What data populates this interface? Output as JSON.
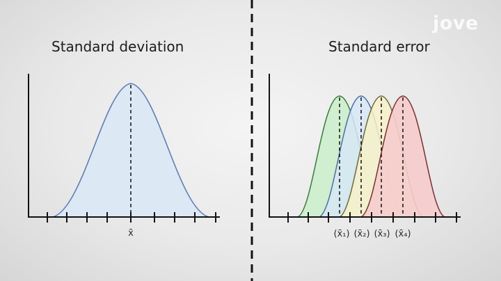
{
  "left_panel": {
    "title": "Standard deviation",
    "mean_label": "x̄",
    "curve": {
      "fill": "#dde8f5",
      "stroke": "#5b7fb3"
    }
  },
  "right_panel": {
    "title": "Standard error",
    "curves": [
      {
        "label": "(x̄₁)",
        "fill": "#cdeecd",
        "stroke": "#3d7a3d"
      },
      {
        "label": "(x̄₂)",
        "fill": "#d7e6f6",
        "stroke": "#4a6f9e"
      },
      {
        "label": "(x̄₃)",
        "fill": "#f7f1c8",
        "stroke": "#6e6a3a"
      },
      {
        "label": "(x̄₄)",
        "fill": "#f6cccc",
        "stroke": "#7a2f2f"
      }
    ]
  },
  "divider": {
    "style": "dashed",
    "color": "#111111"
  },
  "logo": {
    "text": "jove"
  }
}
